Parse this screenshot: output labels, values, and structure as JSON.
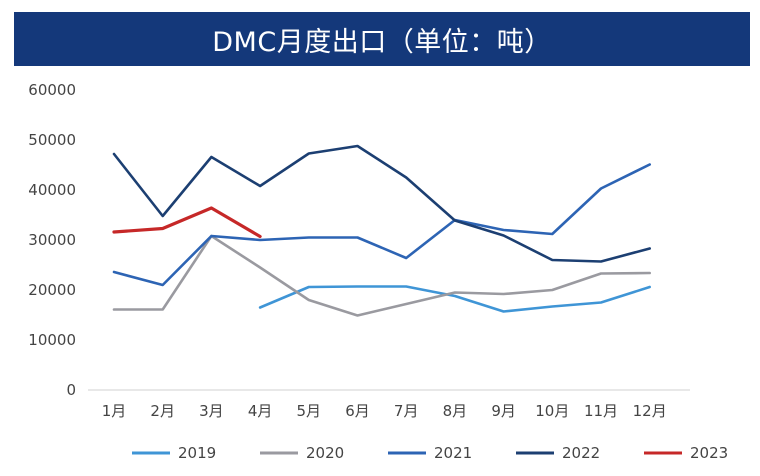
{
  "title": "DMC月度出口（单位：吨）",
  "chart_data": {
    "type": "line",
    "title": "DMC月度出口（单位：吨）",
    "xlabel": "",
    "ylabel": "",
    "categories": [
      "1月",
      "2月",
      "3月",
      "4月",
      "5月",
      "6月",
      "7月",
      "8月",
      "9月",
      "10月",
      "11月",
      "12月"
    ],
    "ylim": [
      0,
      60000
    ],
    "yticks": [
      0,
      10000,
      20000,
      30000,
      40000,
      50000,
      60000
    ],
    "grid": false,
    "legend_position": "bottom",
    "series": [
      {
        "name": "2019",
        "color": "#3f95d6",
        "values": [
          null,
          null,
          null,
          16500,
          20600,
          20700,
          20700,
          18800,
          15700,
          16700,
          17500,
          20600
        ]
      },
      {
        "name": "2020",
        "color": "#9a9aa0",
        "values": [
          16100,
          16100,
          30800,
          24500,
          18000,
          14900,
          17200,
          19500,
          19200,
          20000,
          23300,
          23400
        ]
      },
      {
        "name": "2021",
        "color": "#2d64b4",
        "values": [
          23600,
          21000,
          30800,
          30000,
          30500,
          30500,
          26400,
          34000,
          32000,
          31200,
          40300,
          45100
        ]
      },
      {
        "name": "2022",
        "color": "#1c3f72",
        "values": [
          47200,
          34800,
          46600,
          40800,
          47300,
          48800,
          42500,
          33900,
          30900,
          26000,
          25700,
          28300
        ]
      },
      {
        "name": "2023",
        "color": "#c62828",
        "values": [
          31600,
          32300,
          36400,
          30700,
          null,
          null,
          null,
          null,
          null,
          null,
          null,
          null
        ]
      }
    ]
  }
}
